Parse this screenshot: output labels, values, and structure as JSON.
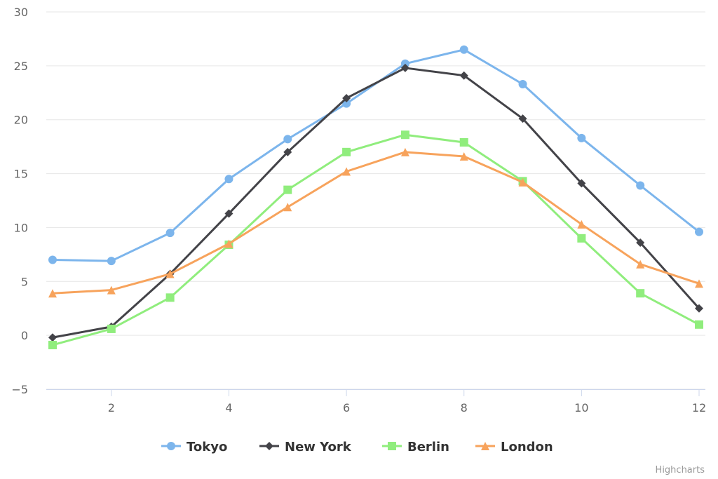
{
  "chart_data": {
    "type": "line",
    "title": "",
    "subtitle": "",
    "xlabel": "",
    "ylabel": "",
    "x": [
      1,
      2,
      3,
      4,
      5,
      6,
      7,
      8,
      9,
      10,
      11,
      12
    ],
    "xticks": [
      2,
      4,
      6,
      8,
      10,
      12
    ],
    "xtick_labels": [
      "2",
      "4",
      "6",
      "8",
      "10",
      "12"
    ],
    "xlim": [
      1,
      12
    ],
    "yticks": [
      -5,
      0,
      5,
      10,
      15,
      20,
      25,
      30
    ],
    "ytick_labels": [
      "−5",
      "0",
      "5",
      "10",
      "15",
      "20",
      "25",
      "30"
    ],
    "ylim": [
      -5,
      30
    ],
    "grid": {
      "y": true,
      "x": false
    },
    "legend_position": "bottom-center",
    "series": [
      {
        "name": "Tokyo",
        "color": "#7cb5ec",
        "marker": "circle",
        "values": [
          7.0,
          6.9,
          9.5,
          14.5,
          18.2,
          21.5,
          25.2,
          26.5,
          23.3,
          18.3,
          13.9,
          9.6
        ]
      },
      {
        "name": "New York",
        "color": "#434348",
        "marker": "diamond",
        "values": [
          -0.2,
          0.8,
          5.7,
          11.3,
          17.0,
          22.0,
          24.8,
          24.1,
          20.1,
          14.1,
          8.6,
          2.5
        ]
      },
      {
        "name": "Berlin",
        "color": "#90ed7d",
        "marker": "square",
        "values": [
          -0.9,
          0.6,
          3.5,
          8.4,
          13.5,
          17.0,
          18.6,
          17.9,
          14.3,
          9.0,
          3.9,
          1.0
        ]
      },
      {
        "name": "London",
        "color": "#f7a35c",
        "marker": "triangle",
        "values": [
          3.9,
          4.2,
          5.7,
          8.5,
          11.9,
          15.2,
          17.0,
          16.6,
          14.2,
          10.3,
          6.6,
          4.8
        ]
      }
    ]
  },
  "credits": "Highcharts"
}
